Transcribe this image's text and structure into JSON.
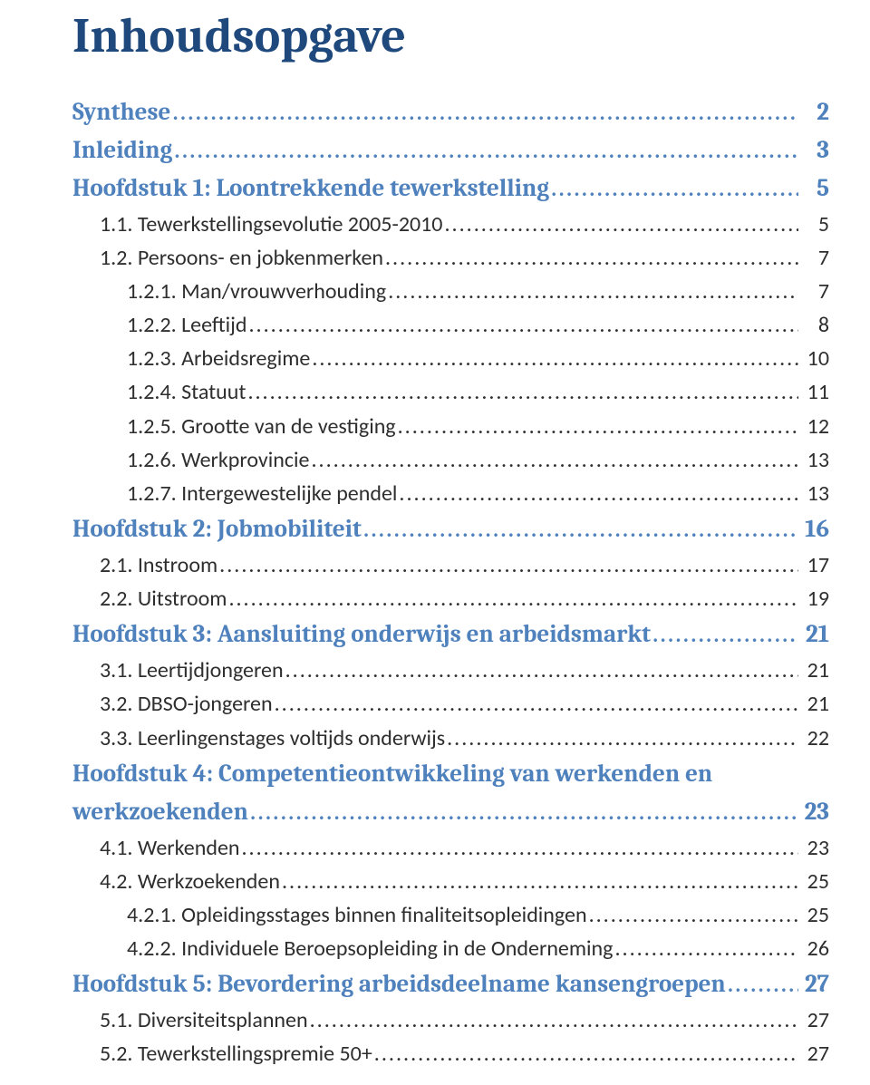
{
  "title": "Inhoudsopgave",
  "colors": {
    "title_color": "#1f497d",
    "heading_color": "#4f81bd",
    "text_color": "#2e2e2e",
    "background": "#ffffff"
  },
  "typography": {
    "title_font": "Cambria",
    "title_size_pt": 40,
    "heading_font": "Cambria",
    "heading_size_pt": 20,
    "body_font": "Calibri",
    "body_size_pt": 18
  },
  "toc": [
    {
      "level": 1,
      "label": "Synthese",
      "page": "2"
    },
    {
      "level": 1,
      "label": "Inleiding",
      "page": "3"
    },
    {
      "level": 1,
      "label": "Hoofdstuk 1: Loontrekkende tewerkstelling",
      "page": "5"
    },
    {
      "level": 2,
      "label": "1.1. Tewerkstellingsevolutie 2005-2010",
      "page": "5"
    },
    {
      "level": 2,
      "label": "1.2. Persoons- en jobkenmerken",
      "page": "7"
    },
    {
      "level": 3,
      "label": "1.2.1. Man/vrouwverhouding",
      "page": "7"
    },
    {
      "level": 3,
      "label": "1.2.2. Leeftijd",
      "page": "8"
    },
    {
      "level": 3,
      "label": "1.2.3. Arbeidsregime",
      "page": "10"
    },
    {
      "level": 3,
      "label": "1.2.4. Statuut",
      "page": "11"
    },
    {
      "level": 3,
      "label": "1.2.5. Grootte van de vestiging",
      "page": "12"
    },
    {
      "level": 3,
      "label": "1.2.6. Werkprovincie",
      "page": "13"
    },
    {
      "level": 3,
      "label": "1.2.7. Intergewestelijke pendel",
      "page": "13"
    },
    {
      "level": 1,
      "label": "Hoofdstuk 2: Jobmobiliteit",
      "page": "16"
    },
    {
      "level": 2,
      "label": "2.1. Instroom",
      "page": "17"
    },
    {
      "level": 2,
      "label": "2.2. Uitstroom",
      "page": "19"
    },
    {
      "level": 1,
      "label": "Hoofdstuk 3: Aansluiting onderwijs en arbeidsmarkt",
      "page": "21"
    },
    {
      "level": 2,
      "label": "3.1. Leertijdjongeren",
      "page": "21"
    },
    {
      "level": 2,
      "label": "3.2. DBSO-jongeren",
      "page": "21"
    },
    {
      "level": 2,
      "label": "3.3. Leerlingenstages voltijds onderwijs",
      "page": "22"
    },
    {
      "level": 1,
      "label": "Hoofdstuk 4: Competentieontwikkeling van werkenden en werkzoekenden",
      "page": "23"
    },
    {
      "level": 2,
      "label": "4.1. Werkenden",
      "page": "23"
    },
    {
      "level": 2,
      "label": "4.2. Werkzoekenden",
      "page": "25"
    },
    {
      "level": 3,
      "label": "4.2.1. Opleidingsstages binnen finaliteitsopleidingen",
      "page": "25"
    },
    {
      "level": 3,
      "label": "4.2.2. Individuele Beroepsopleiding in de Onderneming",
      "page": "26"
    },
    {
      "level": 1,
      "label": "Hoofdstuk 5: Bevordering arbeidsdeelname kansengroepen",
      "page": "27"
    },
    {
      "level": 2,
      "label": "5.1. Diversiteitsplannen",
      "page": "27"
    },
    {
      "level": 2,
      "label": "5.2. Tewerkstellingspremie 50+",
      "page": "27"
    }
  ]
}
